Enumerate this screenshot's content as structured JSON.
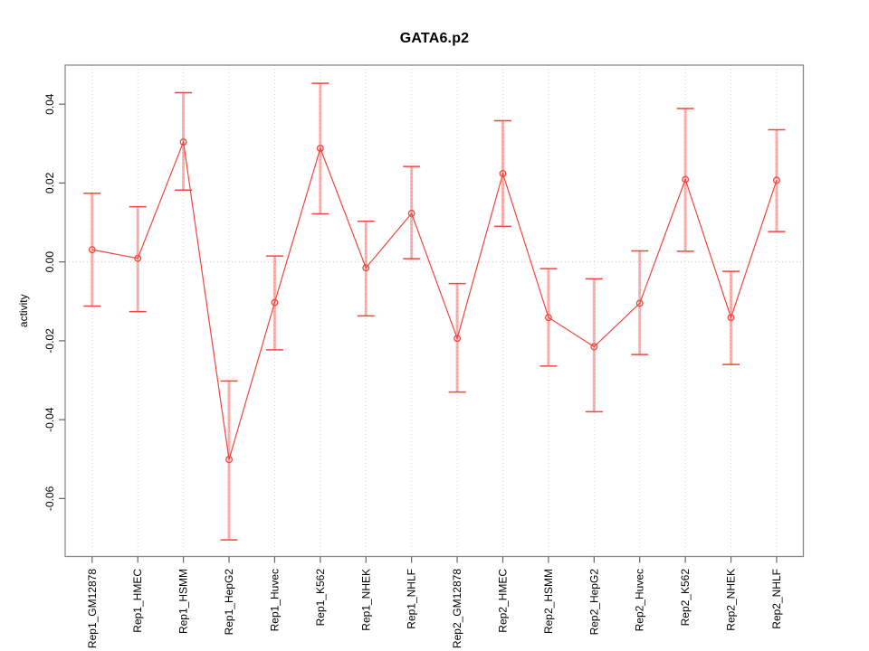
{
  "chart_data": {
    "type": "line",
    "title": "GATA6.p2",
    "xlabel": "",
    "ylabel": "activity",
    "categories": [
      "Rep1_GM12878",
      "Rep1_HMEC",
      "Rep1_HSMM",
      "Rep1_HepG2",
      "Rep1_Huvec",
      "Rep1_K562",
      "Rep1_NHEK",
      "Rep1_NHLF",
      "Rep2_GM12878",
      "Rep2_HMEC",
      "Rep2_HSMM",
      "Rep2_HepG2",
      "Rep2_Huvec",
      "Rep2_K562",
      "Rep2_NHEK",
      "Rep2_NHLF"
    ],
    "series": [
      {
        "name": "activity",
        "values": [
          0.0031,
          0.0009,
          0.0304,
          -0.0501,
          -0.0103,
          0.0288,
          -0.0015,
          0.0123,
          -0.0194,
          0.0224,
          -0.0141,
          -0.0215,
          -0.0105,
          0.0209,
          -0.0141,
          0.0207
        ],
        "error_low": [
          -0.0112,
          -0.0126,
          0.0182,
          -0.0705,
          -0.0223,
          0.0122,
          -0.0137,
          0.0008,
          -0.033,
          0.009,
          -0.0264,
          -0.038,
          -0.0235,
          0.0027,
          -0.026,
          0.0077
        ],
        "error_high": [
          0.0174,
          0.014,
          0.0429,
          -0.0302,
          0.0015,
          0.0453,
          0.0103,
          0.0242,
          -0.0055,
          0.0358,
          -0.0017,
          -0.0043,
          0.0028,
          0.0389,
          -0.0024,
          0.0335
        ]
      }
    ],
    "ylim": [
      -0.0747,
      0.0499
    ],
    "ytick_labels": [
      "0.04",
      "0.02",
      "0.00",
      "-0.02",
      "-0.04",
      "-0.06"
    ],
    "ytick_values": [
      0.04,
      0.02,
      0.0,
      -0.02,
      -0.04,
      -0.06
    ],
    "grid": "vertical dotted line at each category; horizontal dotted line at y=0",
    "legend": "none",
    "colors": {
      "point_line": "#f0463e",
      "whisker": "rgba(240,60,50,0.40)",
      "grid": "#d6d6d6",
      "zero_line": "#c9c9c9",
      "frame": "#888888",
      "tick": "#666666",
      "text": "#000000",
      "background": "#ffffff"
    }
  }
}
